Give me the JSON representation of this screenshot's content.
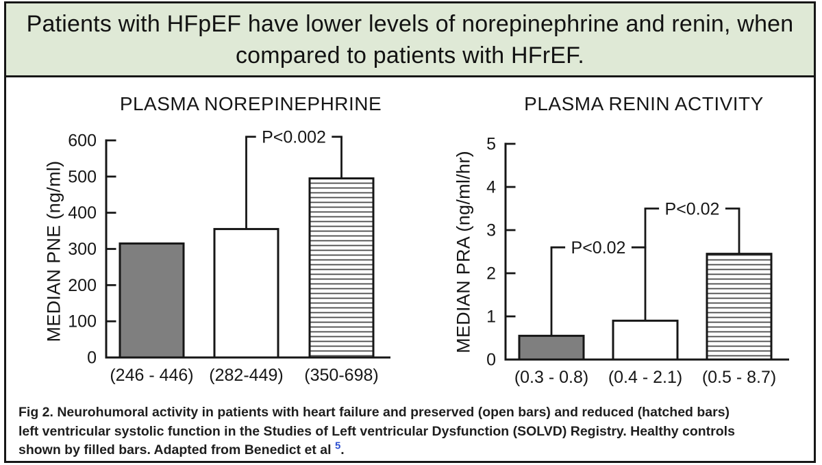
{
  "banner": {
    "line1": "Patients with HFpEF have lower levels of norepinephrine and renin, when",
    "line2": "compared to patients with HFrEF.",
    "bg_color": "#dfe9d6",
    "border_color": "#161616"
  },
  "caption": {
    "line1": "Fig 2. Neurohumoral activity in patients with heart failure and preserved (open bars) and reduced (hatched bars)",
    "line2": "left ventricular systolic function in the Studies of Left ventricular Dysfunction (SOLVD) Registry. Healthy controls",
    "line3": "shown by filled bars. Adapted from Benedict et al ",
    "superscript": "5",
    "suffix": ".",
    "superscript_color": "#2b4fd0"
  },
  "colors": {
    "bar_fill_gray": "#7f7f7f",
    "line": "#161616",
    "hatch_line": "#4a4a4a"
  },
  "chart_data": [
    {
      "type": "bar",
      "title": "PLASMA NOREPINEPHRINE",
      "ylabel": "MEDIAN PNE (ng/ml)",
      "ylim": [
        0,
        600
      ],
      "yticks": [
        0,
        100,
        200,
        300,
        400,
        500,
        600
      ],
      "grid": false,
      "bars": [
        {
          "value": 315,
          "range_label": "(246 - 446)",
          "style": "filled",
          "group": "healthy-controls"
        },
        {
          "value": 355,
          "range_label": "(282-449)",
          "style": "open",
          "group": "preserved-ef"
        },
        {
          "value": 495,
          "range_label": "(350-698)",
          "style": "hatched",
          "group": "reduced-ef"
        }
      ],
      "risers": [
        {
          "bar": 1,
          "to": 610
        },
        {
          "bar": 2,
          "to": 610
        }
      ],
      "sig_brackets": [
        {
          "label": "P<0.002",
          "level": 610,
          "left_bar": 1,
          "right_bar": 2
        }
      ]
    },
    {
      "type": "bar",
      "title": "PLASMA RENIN ACTIVITY",
      "ylabel": "MEDIAN PRA (ng/ml/hr)",
      "ylim": [
        0,
        5
      ],
      "yticks": [
        0,
        1,
        2,
        3,
        4,
        5
      ],
      "grid": false,
      "bars": [
        {
          "value": 0.55,
          "range_label": "(0.3 - 0.8)",
          "style": "filled",
          "group": "healthy-controls"
        },
        {
          "value": 0.9,
          "range_label": "(0.4 - 2.1)",
          "style": "open",
          "group": "preserved-ef"
        },
        {
          "value": 2.45,
          "range_label": "(0.5 - 8.7)",
          "style": "hatched",
          "group": "reduced-ef"
        }
      ],
      "risers": [
        {
          "bar": 0,
          "to": 2.6
        },
        {
          "bar": 1,
          "to": 3.5
        },
        {
          "bar": 2,
          "to": 3.5
        }
      ],
      "sig_brackets": [
        {
          "label": "P<0.02",
          "level": 2.6,
          "left_bar": 0,
          "right_bar": 1
        },
        {
          "label": "P<0.02",
          "level": 3.5,
          "left_bar": 1,
          "right_bar": 2
        }
      ]
    }
  ]
}
